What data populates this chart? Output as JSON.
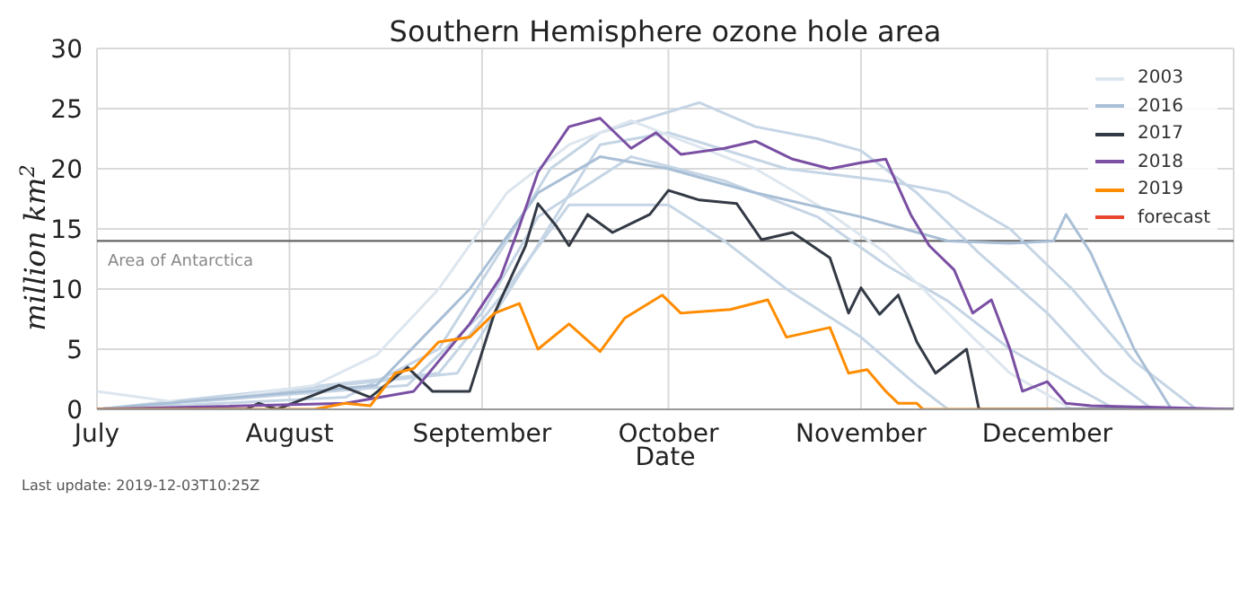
{
  "chart_data": {
    "type": "line",
    "title": "Southern Hemisphere ozone hole area",
    "xlabel": "Date",
    "ylabel": "million km$^{2}$",
    "annotations": [
      "Last update: 2019-12-03T10:25Z"
    ],
    "xlim": [
      "--07-01",
      "--12-31"
    ],
    "xticks": [
      {
        "value": "--07-01",
        "label": "July"
      },
      {
        "value": "--08-01",
        "label": "August"
      },
      {
        "value": "--09-01",
        "label": "September"
      },
      {
        "value": "--10-01",
        "label": "October"
      },
      {
        "value": "--11-01",
        "label": "November"
      },
      {
        "value": "--12-01",
        "label": "December"
      }
    ],
    "ylim": [
      0,
      30
    ],
    "yticks": [
      0,
      5,
      10,
      15,
      20,
      25,
      30
    ],
    "grid": true,
    "legend": "top right",
    "marker": "none",
    "line_style": "solid",
    "ref_lines": [
      {
        "axis": "y",
        "value": 14,
        "label": "Area of Antarctica",
        "color": "#666666"
      }
    ],
    "series": [
      {
        "color": "#c5d5e5",
        "x": [
          "--07-01",
          "--08-10",
          "--08-25",
          "--09-05",
          "--09-12",
          "--09-20",
          "--10-06",
          "--10-15",
          "--10-25",
          "--11-01",
          "--11-10",
          "--11-20",
          "--12-01",
          "--12-10",
          "--12-18",
          "--12-31"
        ],
        "values": [
          0,
          1,
          5,
          14,
          20,
          23,
          25.5,
          23.5,
          22.5,
          21.5,
          18,
          13,
          8,
          3,
          0,
          0
        ]
      },
      {
        "color": "#c5d5e5",
        "x": [
          "--07-01",
          "--08-20",
          "--09-01",
          "--09-10",
          "--09-25",
          "--10-10",
          "--10-25",
          "--11-05",
          "--11-15",
          "--11-25",
          "--12-05",
          "--12-12",
          "--12-31"
        ],
        "values": [
          0,
          2,
          8,
          16,
          21,
          19,
          16,
          12,
          9,
          5,
          2,
          0,
          0
        ]
      },
      {
        "color": "#c5d5e5",
        "x": [
          "--07-01",
          "--08-25",
          "--09-05",
          "--09-15",
          "--10-01",
          "--10-10",
          "--10-20",
          "--11-01",
          "--11-10",
          "--11-15",
          "--12-31"
        ],
        "values": [
          0,
          3,
          10,
          17,
          17,
          14,
          10,
          6,
          2,
          0,
          0
        ]
      },
      {
        "color": "#c5d5e5",
        "x": [
          "--07-01",
          "--08-28",
          "--09-08",
          "--09-20",
          "--10-01",
          "--10-20",
          "--11-05",
          "--11-15",
          "--11-25",
          "--12-05",
          "--12-15",
          "--12-25",
          "--12-31"
        ],
        "values": [
          0,
          3,
          12,
          22,
          23,
          20,
          19,
          18,
          15,
          10,
          4,
          0,
          0
        ]
      },
      {
        "name": "2003",
        "color": "#dde6ef",
        "x": [
          "--07-01",
          "--07-15",
          "--08-05",
          "--08-15",
          "--08-25",
          "--09-05",
          "--09-15",
          "--09-25",
          "--10-05",
          "--10-15",
          "--10-25",
          "--11-05",
          "--11-15",
          "--11-25",
          "--12-05",
          "--12-31"
        ],
        "values": [
          1.5,
          0.5,
          2,
          4.5,
          10,
          18,
          22,
          24,
          22,
          20,
          17,
          13,
          8,
          3,
          0,
          0
        ]
      },
      {
        "name": "2016",
        "color": "#a9bfd6",
        "x": [
          "--07-01",
          "--08-15",
          "--08-30",
          "--09-10",
          "--09-20",
          "--10-01",
          "--10-15",
          "--11-01",
          "--11-15",
          "--11-25",
          "--12-02",
          "--12-04",
          "--12-08",
          "--12-15",
          "--12-21",
          "--12-31"
        ],
        "values": [
          0,
          2,
          10,
          18,
          21,
          20,
          18,
          16,
          14,
          13.8,
          14,
          16.2,
          13,
          5,
          0,
          0
        ]
      },
      {
        "name": "2017",
        "color": "#333a45",
        "x": [
          "--07-01",
          "--07-25",
          "--07-27",
          "--07-30",
          "--08-09",
          "--08-14",
          "--08-20",
          "--08-24",
          "--08-30",
          "--09-03",
          "--09-08",
          "--09-10",
          "--09-13",
          "--09-15",
          "--09-18",
          "--09-22",
          "--09-28",
          "--10-01",
          "--10-06",
          "--10-12",
          "--10-16",
          "--10-21",
          "--10-27",
          "--10-30",
          "--11-01",
          "--11-04",
          "--11-07",
          "--11-10",
          "--11-13",
          "--11-18",
          "--11-20",
          "--12-31"
        ],
        "values": [
          0,
          0,
          0.5,
          0,
          2,
          1,
          3.5,
          1.5,
          1.5,
          8,
          13.6,
          17.1,
          15.2,
          13.6,
          16.2,
          14.7,
          16.2,
          18.2,
          17.4,
          17.1,
          14.1,
          14.7,
          12.6,
          8,
          10.1,
          7.9,
          9.5,
          5.6,
          3,
          5,
          0,
          0
        ]
      },
      {
        "name": "2018",
        "color": "#7a4fa3",
        "x": [
          "--07-01",
          "--08-10",
          "--08-21",
          "--08-30",
          "--09-04",
          "--09-07",
          "--09-10",
          "--09-15",
          "--09-20",
          "--09-25",
          "--09-29",
          "--10-03",
          "--10-10",
          "--10-15",
          "--10-21",
          "--10-27",
          "--11-01",
          "--11-05",
          "--11-09",
          "--11-12",
          "--11-16",
          "--11-19",
          "--11-22",
          "--11-25",
          "--11-27",
          "--12-01",
          "--12-04",
          "--12-08",
          "--12-31"
        ],
        "values": [
          0,
          0.5,
          1.5,
          7.1,
          11,
          15.2,
          19.7,
          23.5,
          24.2,
          21.7,
          23,
          21.2,
          21.7,
          22.3,
          20.8,
          20,
          20.5,
          20.8,
          16.2,
          13.6,
          11.6,
          8,
          9.1,
          5,
          1.5,
          2.3,
          0.5,
          0.3,
          0
        ]
      },
      {
        "name": "2019",
        "color": "#ff8c00",
        "x": [
          "--07-01",
          "--08-05",
          "--08-10",
          "--08-14",
          "--08-18",
          "--08-21",
          "--08-25",
          "--08-30",
          "--09-03",
          "--09-07",
          "--09-10",
          "--09-15",
          "--09-20",
          "--09-24",
          "--09-30",
          "--10-03",
          "--10-11",
          "--10-17",
          "--10-20",
          "--10-27",
          "--10-30",
          "--11-02",
          "--11-05",
          "--11-07",
          "--11-10",
          "--11-11",
          "--12-02"
        ],
        "values": [
          0,
          0,
          0.5,
          0.3,
          3,
          3.4,
          5.6,
          6,
          8,
          8.8,
          5,
          7.1,
          4.8,
          7.6,
          9.5,
          8,
          8.3,
          9.1,
          6,
          6.8,
          3,
          3.3,
          1.5,
          0.5,
          0.5,
          0,
          0
        ]
      },
      {
        "name": "forecast",
        "color": "#e8452c"
      }
    ]
  }
}
